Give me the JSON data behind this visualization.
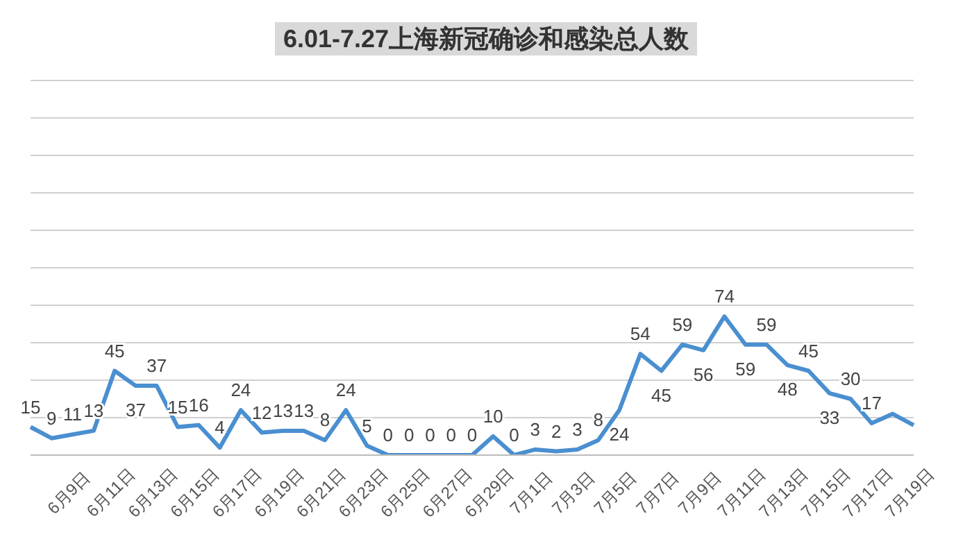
{
  "chart_data": {
    "type": "line",
    "title": "6.01-7.27上海新冠确诊和感染总人数",
    "categories": [
      null,
      null,
      "6月9日",
      null,
      "6月11日",
      null,
      "6月13日",
      null,
      "6月15日",
      null,
      "6月17日",
      null,
      "6月19日",
      null,
      "6月21日",
      null,
      "6月23日",
      null,
      "6月25日",
      null,
      "6月27日",
      null,
      "6月29日",
      null,
      "7月1日",
      null,
      "7月3日",
      null,
      "7月5日",
      null,
      "7月7日",
      null,
      "7月9日",
      null,
      "7月11日",
      null,
      "7月13日",
      null,
      "7月15日",
      null,
      "7月17日",
      null,
      "7月19日"
    ],
    "series": [
      {
        "color": "#4a8fd0",
        "values": [
          15,
          9,
          11,
          13,
          45,
          37,
          37,
          15,
          16,
          4,
          24,
          12,
          13,
          13,
          8,
          24,
          5,
          0,
          0,
          0,
          0,
          0,
          10,
          0,
          3,
          2,
          3,
          8,
          24,
          54,
          45,
          59,
          56,
          74,
          59,
          59,
          48,
          45,
          33,
          30,
          17,
          22,
          16
        ],
        "value_labels": [
          "15",
          "9",
          "11",
          "13",
          "45",
          "37",
          "37",
          "15",
          "16",
          "4",
          "24",
          "12",
          "13",
          "13",
          "8",
          "24",
          "5",
          "0",
          "0",
          "0",
          "0",
          "0",
          "10",
          "0",
          "3",
          "2",
          "3",
          "8",
          "24",
          "54",
          "45",
          "59",
          "56",
          "74",
          "59",
          "59",
          "48",
          "45",
          "33",
          "30",
          "17",
          null,
          null
        ]
      }
    ],
    "ylim": [
      0,
      200
    ],
    "yticks": [
      {
        "value": 0,
        "label": null
      },
      {
        "value": 20,
        "label": null
      },
      {
        "value": 40,
        "label": null
      },
      {
        "value": 60,
        "label": null
      },
      {
        "value": 80,
        "label": null
      },
      {
        "value": 100,
        "label": null
      },
      {
        "value": 120,
        "label": null
      },
      {
        "value": 140,
        "label": null
      },
      {
        "value": 160,
        "label": null
      },
      {
        "value": 180,
        "label": null
      },
      {
        "value": 200,
        "label": null
      }
    ],
    "grid": "y",
    "marker": "none",
    "line_style": "solid",
    "legend": false
  }
}
